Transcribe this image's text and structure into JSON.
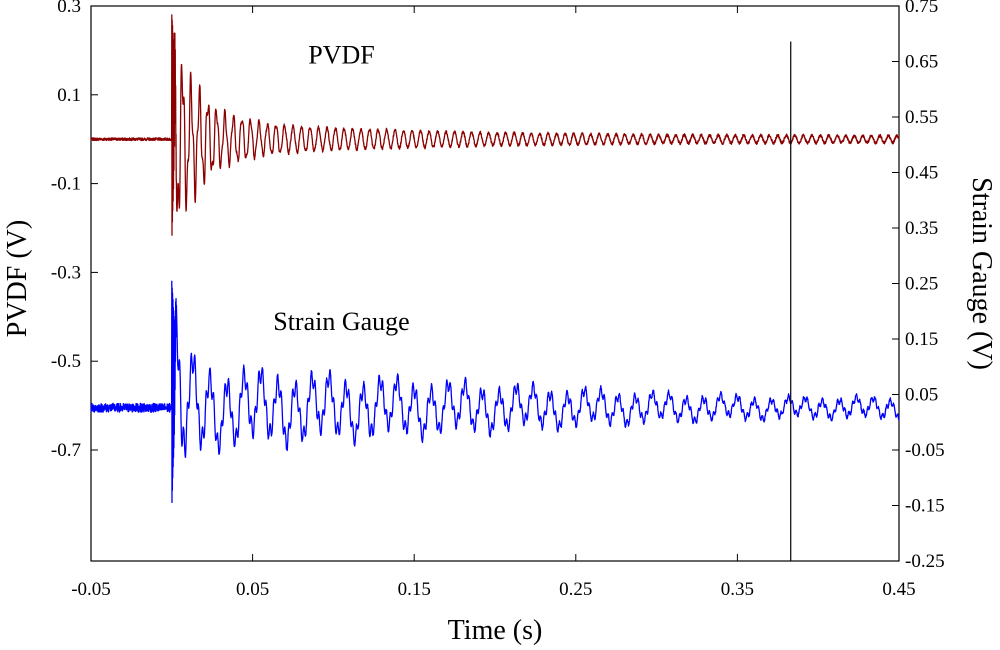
{
  "chart_data": {
    "type": "line",
    "title": "",
    "xlabel": "Time (s)",
    "ylabel_left": "PVDF (V)",
    "ylabel_right": "Strain Gauge (V)",
    "xlim": [
      -0.05,
      0.45
    ],
    "ylim_left": [
      -0.95,
      0.3
    ],
    "ylim_right": [
      -0.25,
      0.75
    ],
    "x_ticks": [
      -0.05,
      0.05,
      0.15,
      0.25,
      0.35,
      0.45
    ],
    "x_tick_labels": [
      "-0.05",
      "0.05",
      "0.15",
      "0.25",
      "0.35",
      "0.45"
    ],
    "y_left_ticks": [
      0.3,
      0.1,
      -0.1,
      -0.3,
      -0.5,
      -0.7
    ],
    "y_left_tick_labels": [
      "0.3",
      "0.1",
      "-0.1",
      "-0.3",
      "-0.5",
      "-0.7"
    ],
    "y_right_ticks": [
      0.75,
      0.65,
      0.55,
      0.45,
      0.35,
      0.25,
      0.15,
      0.05,
      -0.05,
      -0.15,
      -0.25
    ],
    "y_right_tick_labels": [
      "0.75",
      "0.65",
      "0.55",
      "0.45",
      "0.35",
      "0.25",
      "0.15",
      "0.05",
      "-0.05",
      "-0.15",
      "-0.25"
    ],
    "grid": false,
    "legend": "none",
    "annotations": [
      {
        "text": "PVDF",
        "x": 0.105,
        "y_left": 0.17,
        "axis": "left"
      },
      {
        "text": "Strain Gauge",
        "x": 0.105,
        "y_left": -0.43,
        "axis": "left"
      }
    ],
    "vertical_marker": {
      "x": 0.383,
      "y_from_left": -0.95,
      "y_to_left": 0.22
    },
    "series": [
      {
        "name": "PVDF",
        "axis": "left",
        "color": "#8B0000",
        "baseline": 0.0,
        "onset_time": 0.0,
        "peak_max": 0.28,
        "peak_min": -0.23,
        "decay_envelope": {
          "t": [
            0.0,
            0.01,
            0.03,
            0.06,
            0.1,
            0.2,
            0.3,
            0.45
          ],
          "amplitude": [
            0.25,
            0.15,
            0.07,
            0.04,
            0.03,
            0.018,
            0.012,
            0.01
          ]
        },
        "noise_before_onset": 0.003
      },
      {
        "name": "Strain Gauge",
        "axis": "left",
        "color": "#0000FF",
        "baseline": -0.605,
        "onset_time": 0.0,
        "peak_max": -0.32,
        "peak_min": -0.83,
        "decay_envelope": {
          "t": [
            0.0,
            0.01,
            0.03,
            0.1,
            0.2,
            0.3,
            0.38,
            0.45
          ],
          "amplitude": [
            0.26,
            0.12,
            0.09,
            0.075,
            0.055,
            0.035,
            0.025,
            0.025
          ]
        },
        "noise_before_onset": 0.01
      }
    ]
  }
}
